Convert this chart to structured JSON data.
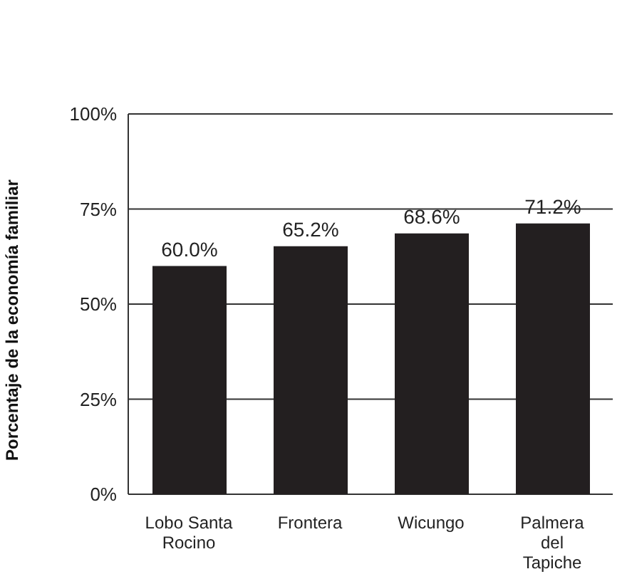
{
  "chart_data": {
    "type": "bar",
    "ylabel": "Porcentaje de la economía familiar",
    "categories": [
      "Lobo Santa Rocino",
      "Frontera",
      "Wicungo",
      "Palmera del Tapiche"
    ],
    "values": [
      60.0,
      65.2,
      68.6,
      71.2
    ],
    "value_labels": [
      "60.0%",
      "65.2%",
      "68.6%",
      "71.2%"
    ],
    "color": "#231f20",
    "ylim": [
      0,
      100
    ],
    "yticks": [
      {
        "value": 0,
        "label": "0%"
      },
      {
        "value": 25,
        "label": "25%"
      },
      {
        "value": 50,
        "label": "50%"
      },
      {
        "value": 75,
        "label": "75%"
      },
      {
        "value": 100,
        "label": "100%"
      }
    ],
    "grid": "y"
  }
}
